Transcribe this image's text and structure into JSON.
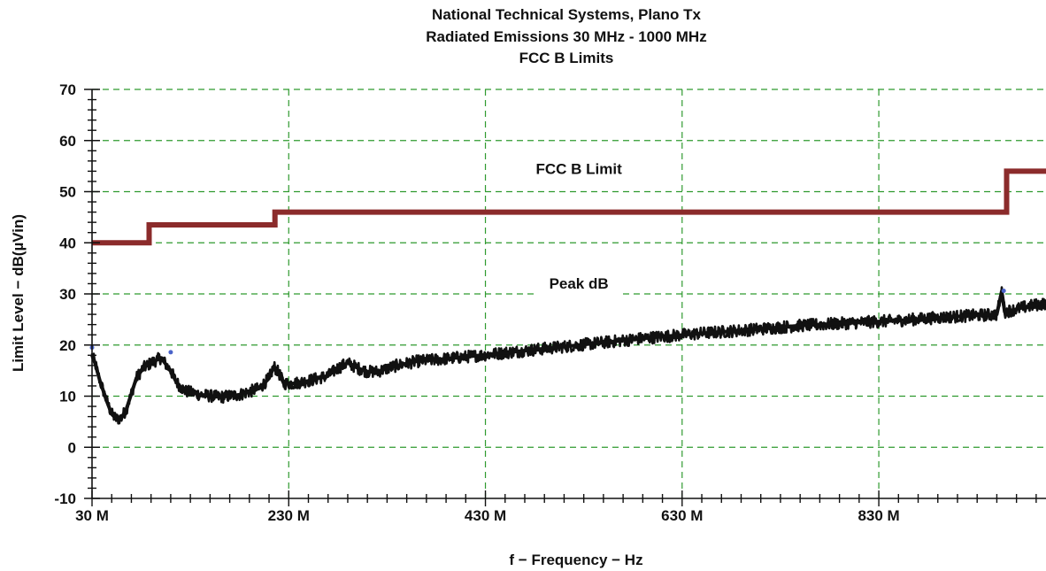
{
  "chart_data": {
    "type": "line",
    "title_lines": [
      "National Technical Systems, Plano Tx",
      "Radiated Emissions 30 MHz - 1000 MHz",
      "FCC B Limits"
    ],
    "xlabel": "f  − Frequency − Hz",
    "ylabel": "Limit Level − dB(µVin)",
    "xlim": [
      30,
      1000
    ],
    "ylim": [
      -10,
      70
    ],
    "xticks": [
      30,
      230,
      430,
      630,
      830
    ],
    "xtick_labels": [
      "30 M",
      "230 M",
      "430 M",
      "630 M",
      "830 M"
    ],
    "yticks": [
      -10,
      0,
      10,
      20,
      30,
      40,
      50,
      60,
      70
    ],
    "ytick_labels": [
      "-10",
      "0",
      "10",
      "20",
      "30",
      "40",
      "50",
      "60",
      "70"
    ],
    "grid": true,
    "series": [
      {
        "name": "FCC B Limit",
        "color": "#8b2b2b",
        "step": true,
        "x": [
          30,
          88,
          88,
          216,
          216,
          960,
          960,
          1000
        ],
        "y": [
          40,
          40,
          43.5,
          43.5,
          46,
          46,
          54,
          54
        ]
      },
      {
        "name": "Peak dB",
        "color": "#111111",
        "x": [
          30,
          33,
          38,
          45,
          50,
          55,
          60,
          65,
          70,
          75,
          82,
          90,
          100,
          110,
          115,
          120,
          125,
          140,
          160,
          180,
          200,
          210,
          215,
          220,
          225,
          235,
          250,
          270,
          280,
          290,
          300,
          310,
          320,
          340,
          360,
          400,
          450,
          500,
          550,
          600,
          650,
          700,
          750,
          800,
          850,
          900,
          950,
          955,
          958,
          965,
          980,
          1000
        ],
        "y": [
          18,
          16.5,
          13,
          9,
          6.5,
          5.5,
          5.8,
          7.5,
          10.5,
          13.5,
          15.5,
          16.5,
          17.5,
          15,
          13,
          11.8,
          11,
          10.3,
          9.8,
          10.3,
          11.5,
          13.5,
          15.8,
          14.5,
          12.5,
          12.5,
          13,
          14,
          15.5,
          16.5,
          15.5,
          14.8,
          14.8,
          16,
          16.8,
          17.5,
          18.5,
          19.5,
          20.5,
          21.5,
          22.3,
          23,
          23.8,
          24.3,
          24.8,
          25.5,
          26,
          30.5,
          26.5,
          26.8,
          27.5,
          28.2
        ]
      }
    ],
    "annotations": [
      {
        "text": "FCC B Limit",
        "x": 525,
        "y": 53.5
      },
      {
        "text": "Peak dB",
        "x": 525,
        "y": 31
      }
    ],
    "markers": [
      {
        "x": 30,
        "y": 19.5
      },
      {
        "x": 110,
        "y": 18.6
      },
      {
        "x": 957,
        "y": 30.6
      }
    ]
  }
}
